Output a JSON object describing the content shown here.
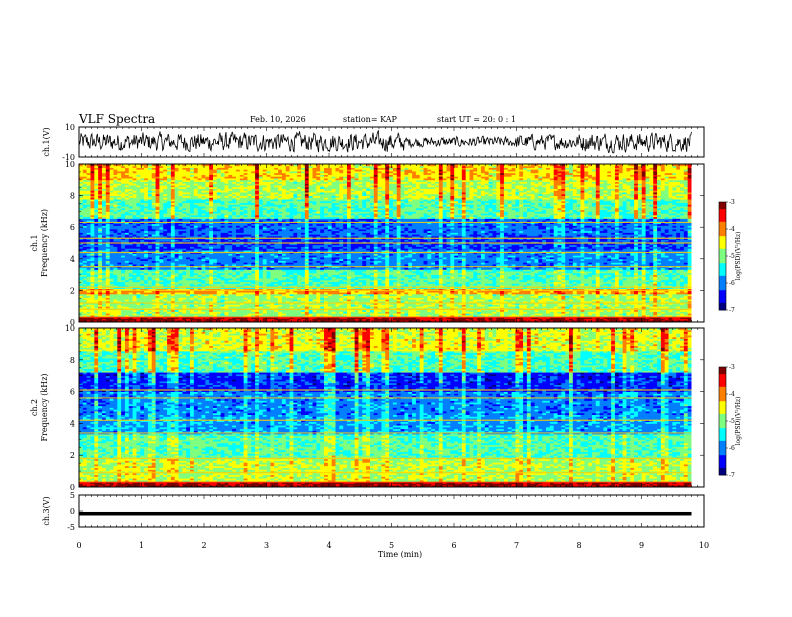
{
  "header": {
    "title": "VLF Spectra",
    "date": "Feb. 10, 2026",
    "station": "station= KAP",
    "start": "start  UT =   20: 0  : 1"
  },
  "colors": {
    "line": "#000000",
    "background": "#ffffff",
    "colormap": [
      "#00007f",
      "#0000ff",
      "#007fff",
      "#00ffff",
      "#7fff7f",
      "#ffff00",
      "#ff7f00",
      "#ff0000",
      "#7f0000"
    ]
  },
  "chart_data": [
    {
      "type": "line",
      "name": "ch1-waveform",
      "ylabel": "ch.1(V)",
      "ylim": [
        -10,
        10
      ],
      "y_tick_labels": [
        "10",
        "-10"
      ],
      "xlim": [
        0,
        10
      ],
      "x_extent": 9.8,
      "description_values": "broadband noisy waveform roughly between -8 and 8 V"
    },
    {
      "type": "heatmap",
      "name": "ch1-spectrogram",
      "ylabel": "ch.1\nFrequency (kHz)",
      "ylabel_lines": [
        "ch.1",
        "Frequency (kHz)"
      ],
      "ylim": [
        0,
        10
      ],
      "y_ticks": [
        0,
        2,
        4,
        6,
        8,
        10
      ],
      "xlim": [
        0,
        10
      ],
      "x_extent": 9.8,
      "colorbar": {
        "label": "log(PSD)(V²/Hz)",
        "range": [
          -7,
          -3
        ],
        "tick_labels": [
          "-3",
          "-4",
          "-5",
          "-6",
          "-7"
        ]
      },
      "bands_khz": [
        {
          "lo": 0.0,
          "hi": 0.3,
          "level": -3.2
        },
        {
          "lo": 0.3,
          "hi": 1.8,
          "level": -4.9
        },
        {
          "lo": 1.8,
          "hi": 2.1,
          "level": -4.2
        },
        {
          "lo": 2.1,
          "hi": 3.3,
          "level": -5.2
        },
        {
          "lo": 3.3,
          "hi": 4.6,
          "level": -6.0
        },
        {
          "lo": 4.6,
          "hi": 5.5,
          "level": -6.3
        },
        {
          "lo": 5.5,
          "hi": 6.6,
          "level": -6.1
        },
        {
          "lo": 6.6,
          "hi": 7.8,
          "level": -5.2
        },
        {
          "lo": 7.8,
          "hi": 9.0,
          "level": -4.8
        },
        {
          "lo": 9.0,
          "hi": 10.0,
          "level": -4.4
        }
      ],
      "lines_khz": [
        0.3,
        0.8,
        1.2,
        2.0,
        2.2,
        3.5,
        4.4,
        5.0,
        5.3,
        6.3
      ]
    },
    {
      "type": "heatmap",
      "name": "ch2-spectrogram",
      "ylabel": "ch.2\nFrequency (kHz)",
      "ylabel_lines": [
        "ch.2",
        "Frequency (kHz)"
      ],
      "ylim": [
        0,
        10
      ],
      "y_ticks": [
        0,
        2,
        4,
        6,
        8,
        10
      ],
      "xlim": [
        0,
        10
      ],
      "x_extent": 9.8,
      "colorbar": {
        "label": "log(PSD)(V²/Hz)",
        "range": [
          -7,
          -3
        ],
        "tick_labels": [
          "-3",
          "-4",
          "-5",
          "-6",
          "-7"
        ]
      },
      "bands_khz": [
        {
          "lo": 0.0,
          "hi": 0.3,
          "level": -3.2
        },
        {
          "lo": 0.3,
          "hi": 1.8,
          "level": -4.8
        },
        {
          "lo": 1.8,
          "hi": 3.3,
          "level": -5.2
        },
        {
          "lo": 3.3,
          "hi": 4.6,
          "level": -5.9
        },
        {
          "lo": 4.6,
          "hi": 6.0,
          "level": -6.0
        },
        {
          "lo": 6.0,
          "hi": 7.2,
          "level": -6.4
        },
        {
          "lo": 7.2,
          "hi": 8.6,
          "level": -5.2
        },
        {
          "lo": 8.6,
          "hi": 10.0,
          "level": -4.6
        }
      ],
      "lines_khz": [
        0.3,
        0.9,
        1.8,
        3.4,
        4.2,
        5.6,
        6.1
      ]
    },
    {
      "type": "line",
      "name": "ch3-waveform",
      "ylabel": "ch.3(V)",
      "ylim": [
        -5,
        5
      ],
      "y_tick_labels": [
        "5",
        "0",
        "-5"
      ],
      "xlim": [
        0,
        10
      ],
      "x_extent": 9.8,
      "description_values": "flat signal near -0.8 V drawn as thick bar"
    }
  ],
  "x_axis": {
    "label": "Time (min)",
    "ticks": [
      0,
      1,
      2,
      3,
      4,
      5,
      6,
      7,
      8,
      9,
      10
    ],
    "tick_labels": [
      "0",
      "1",
      "2",
      "3",
      "4",
      "5",
      "6",
      "7",
      "8",
      "9",
      "10"
    ]
  }
}
